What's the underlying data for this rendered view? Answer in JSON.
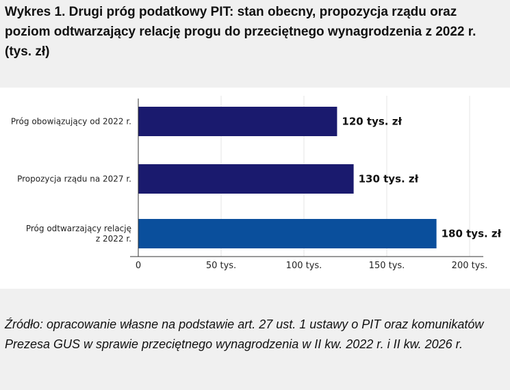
{
  "title": "Wykres 1. Drugi próg podatkowy PIT: stan obecny, propozycja rządu oraz poziom odtwarzający relację progu do przeciętnego wynagrodzenia z 2022 r. (tys. zł)",
  "source": "Źródło: opracowanie własne na podstawie art. 27 ust. 1 ustawy o PIT oraz komunikatów Prezesa GUS w sprawie przeciętnego wynagrodzenia w II kw. 2022 r. i II kw. 2026 r.",
  "chart_data": {
    "type": "bar",
    "orientation": "horizontal",
    "categories": [
      [
        "Próg obowiązujący od 2022 r."
      ],
      [
        "Propozycja rządu na 2027 r."
      ],
      [
        "Próg odtwarzający relację",
        "z 2022 r."
      ]
    ],
    "values": [
      120,
      130,
      180
    ],
    "data_labels": [
      "120 tys. zł",
      "130 tys. zł",
      "180 tys. zł"
    ],
    "bar_colors": [
      "#1a1a6e",
      "#1a1a6e",
      "#0a4f9c"
    ],
    "xlim": [
      0,
      200
    ],
    "xticks": [
      0,
      50,
      100,
      150,
      200
    ],
    "xtick_labels": [
      "0",
      "50 tys.",
      "100 tys.",
      "150 tys.",
      "200 tys."
    ],
    "grid": true,
    "gridline_color": "#e6e6e6",
    "axis_color": "#333333"
  }
}
